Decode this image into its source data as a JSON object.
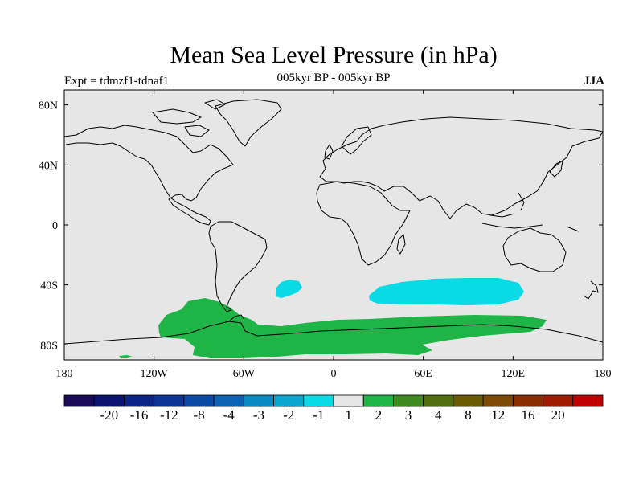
{
  "header": {
    "title": "Mean Sea Level Pressure (in hPa)",
    "subtitle": "005kyr BP - 005kyr BP",
    "left_label": "Expt = tdmzf1-tdnaf1",
    "right_label": "JJA"
  },
  "map": {
    "projection": "equirectangular",
    "lon_range": [
      -180,
      180
    ],
    "lat_range": [
      -90,
      90
    ],
    "x_ticks": [
      "180",
      "120W",
      "60W",
      "0",
      "60E",
      "120E",
      "180"
    ],
    "y_ticks": [
      "80N",
      "40N",
      "0",
      "40S",
      "80S"
    ],
    "background_color": "#e6e6e6",
    "coast_color": "#000000"
  },
  "chart_data": {
    "type": "heatmap",
    "title": "Mean Sea Level Pressure (in hPa)",
    "variable": "Mean Sea Level Pressure difference",
    "units": "hPa",
    "colorbar": {
      "labels": [
        "-20",
        "-16",
        "-12",
        "-8",
        "-4",
        "-3",
        "-2",
        "-1",
        "1",
        "2",
        "3",
        "4",
        "8",
        "12",
        "16",
        "20"
      ],
      "colors": [
        "#1a0a5a",
        "#0a1470",
        "#0b2585",
        "#0c3597",
        "#0a4aa5",
        "#0c62b4",
        "#0a8ac3",
        "#0aa6cf",
        "#0ad9e6",
        "#e6e6e6",
        "#1fb446",
        "#3f8a1e",
        "#4f6e0c",
        "#6a5a00",
        "#7c4a02",
        "#8a2e00",
        "#a01c00",
        "#c00000"
      ]
    },
    "anomalies": [
      {
        "name": "south-atlantic-low",
        "value_range": "-2 to -1",
        "color": "#0ad9e6"
      },
      {
        "name": "indian-ocean-low",
        "value_range": "-2 to -1",
        "color": "#0ad9e6"
      },
      {
        "name": "antarctic-high",
        "value_range": "1 to 2",
        "color": "#1fb446"
      }
    ]
  }
}
